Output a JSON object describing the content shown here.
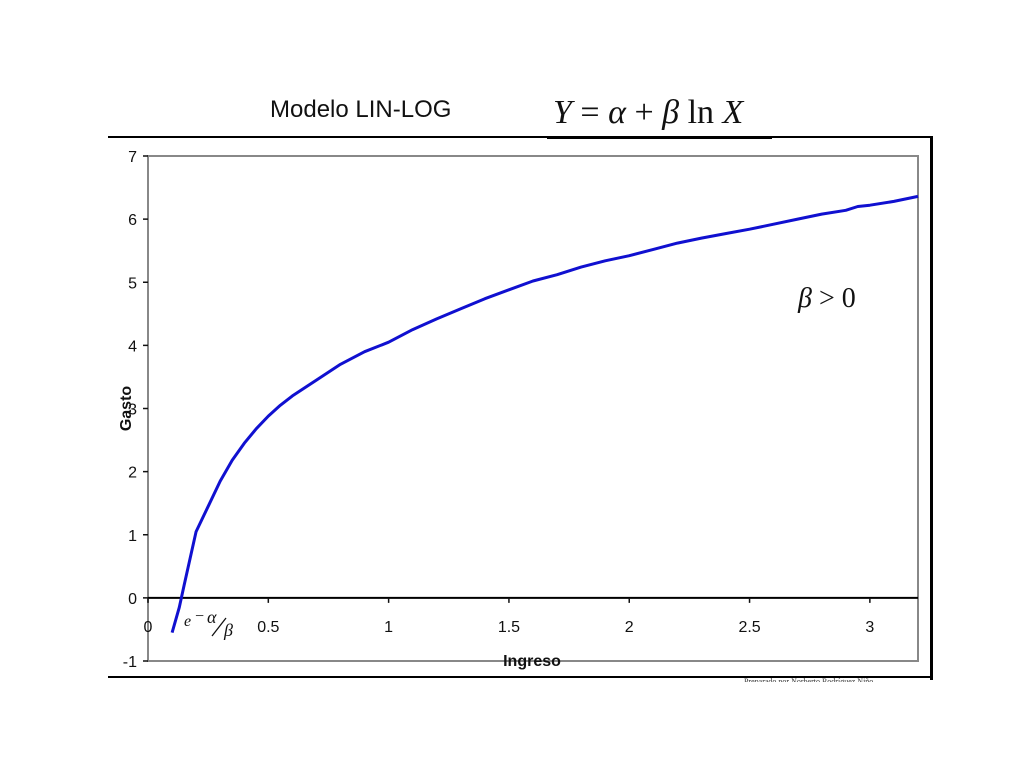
{
  "slide": {
    "title": "Modelo LIN-LOG",
    "formula": {
      "y": "Y",
      "eq": " = ",
      "alpha": "α",
      "plus": " + ",
      "beta": "β",
      "ln": " ln ",
      "x": "X"
    },
    "footer": "Preparado por Norberto Rodríguez Niño"
  },
  "chart_data": {
    "type": "line",
    "title": "",
    "xlabel": "Ingreso",
    "ylabel": "Gasto",
    "xlim": [
      0,
      3.2
    ],
    "ylim": [
      -1,
      7
    ],
    "xticks": [
      0,
      0.5,
      1,
      1.5,
      2,
      2.5,
      3
    ],
    "xtick_labels": [
      "0",
      "0.5",
      "1",
      "1.5",
      "2",
      "2.5",
      "3"
    ],
    "yticks": [
      -1,
      0,
      1,
      2,
      3,
      4,
      5,
      6,
      7
    ],
    "ytick_labels": [
      "-1",
      "0",
      "1",
      "2",
      "3",
      "4",
      "5",
      "6",
      "7"
    ],
    "grid": false,
    "line_color": "#1010d0",
    "annotations": {
      "beta_condition": {
        "beta": "β",
        "rest": " > 0"
      },
      "x_intercept": {
        "base": "e",
        "exp_sign": "−",
        "exp_num": "α",
        "exp_den": "β"
      }
    },
    "series": [
      {
        "x": [
          0.1,
          0.13,
          0.15,
          0.2,
          0.25,
          0.3,
          0.35,
          0.4,
          0.45,
          0.5,
          0.55,
          0.6,
          0.7,
          0.8,
          0.9,
          1.0,
          1.1,
          1.2,
          1.3,
          1.4,
          1.5,
          1.6,
          1.7,
          1.8,
          1.9,
          2.0,
          2.1,
          2.2,
          2.3,
          2.4,
          2.5,
          2.6,
          2.7,
          2.8,
          2.9,
          2.95,
          3.0,
          3.1,
          3.2
        ],
        "y": [
          -0.55,
          -0.15,
          0.2,
          1.05,
          1.45,
          1.85,
          2.18,
          2.45,
          2.68,
          2.88,
          3.05,
          3.2,
          3.45,
          3.7,
          3.9,
          4.05,
          4.25,
          4.42,
          4.58,
          4.74,
          4.88,
          5.02,
          5.12,
          5.24,
          5.34,
          5.42,
          5.52,
          5.62,
          5.7,
          5.77,
          5.84,
          5.92,
          6.0,
          6.08,
          6.14,
          6.2,
          6.22,
          6.28,
          6.36
        ]
      }
    ]
  }
}
